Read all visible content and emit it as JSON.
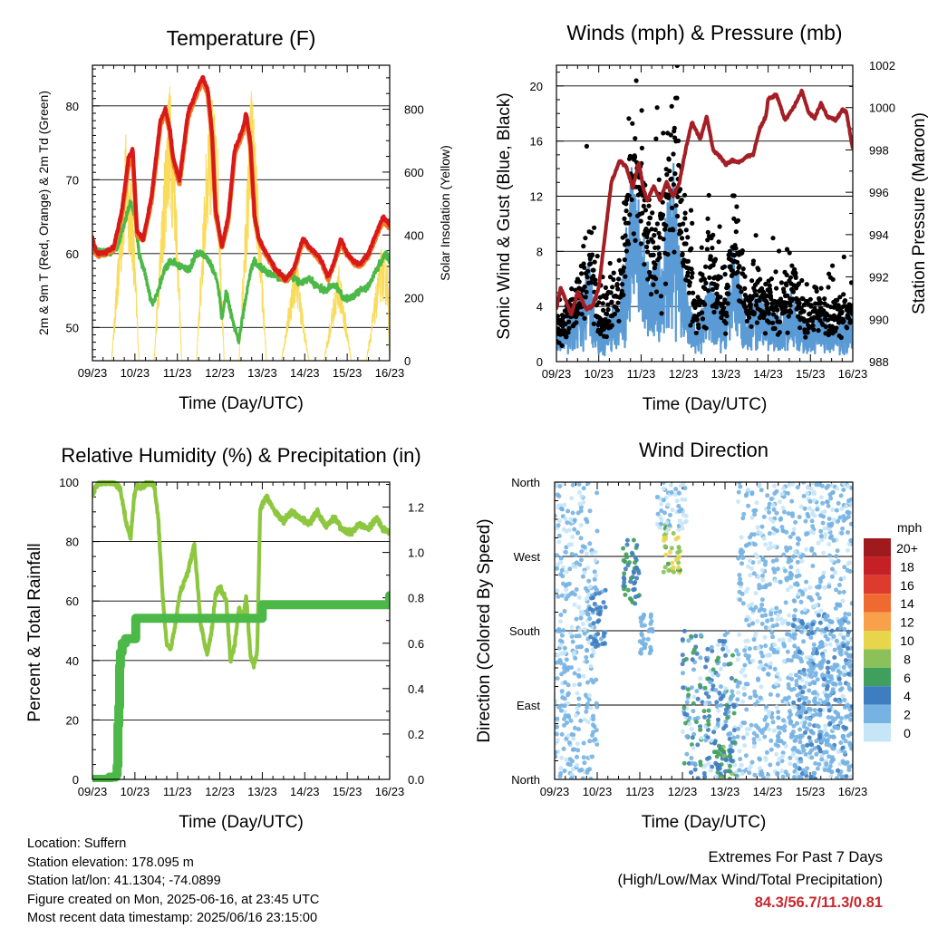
{
  "colors": {
    "red": "#d7191c",
    "orange": "#f47b20",
    "green": "#4cb848",
    "yellow": "#f9dc5c",
    "black": "#000000",
    "blue": "#5b9bd5",
    "maroon": "#a31f25",
    "rh_green": "#8dc63f",
    "precip_green": "#4cb848",
    "extreme_red": "#c9262c"
  },
  "time_ticks": [
    "09/23",
    "10/23",
    "11/23",
    "12/23",
    "13/23",
    "14/23",
    "15/23",
    "16/23"
  ],
  "chart_data": [
    {
      "id": "temperature",
      "type": "line",
      "title": "Temperature (F)",
      "xlabel": "Time (Day/UTC)",
      "ylabel": "2m & 9m T (Red, Orange) & 2m Td (Green)",
      "y2label": "Solar Insolation (Yellow)",
      "x_range": [
        0,
        7
      ],
      "ylim": [
        45.5,
        85.5
      ],
      "y_ticks": [
        "50",
        "60",
        "70",
        "80"
      ],
      "y2lim": [
        0,
        940
      ],
      "y2_ticks": [
        "0",
        "200",
        "400",
        "600",
        "800"
      ],
      "grid": true,
      "series": [
        {
          "key": "t2m",
          "color": "red",
          "x": [
            0,
            0.1,
            0.3,
            0.5,
            0.7,
            0.85,
            0.95,
            1.05,
            1.2,
            1.4,
            1.6,
            1.72,
            1.82,
            1.9,
            2.05,
            2.25,
            2.45,
            2.6,
            2.72,
            2.82,
            2.9,
            3.05,
            3.2,
            3.35,
            3.55,
            3.62,
            3.72,
            3.82,
            3.92,
            4.05,
            4.3,
            4.55,
            4.75,
            4.95,
            5.1,
            5.25,
            5.4,
            5.55,
            5.7,
            5.85,
            6.0,
            6.15,
            6.3,
            6.5,
            6.7,
            6.85,
            7.0
          ],
          "y": [
            62,
            60,
            60.2,
            60.8,
            66,
            73,
            74,
            63,
            62,
            68,
            78,
            79.5,
            77,
            73,
            70,
            79,
            82,
            84,
            82,
            76,
            66,
            61,
            65,
            74,
            77,
            79,
            75,
            65,
            62,
            60.5,
            58,
            56.5,
            58,
            62,
            61,
            60,
            59,
            56.7,
            59,
            62,
            60,
            59,
            58.5,
            60,
            63,
            65,
            64
          ]
        },
        {
          "key": "t9m",
          "color": "orange",
          "x": [
            0,
            0.1,
            0.3,
            0.5,
            0.7,
            0.85,
            0.95,
            1.05,
            1.2,
            1.4,
            1.6,
            1.72,
            1.82,
            1.9,
            2.05,
            2.25,
            2.45,
            2.6,
            2.72,
            2.82,
            2.9,
            3.05,
            3.2,
            3.35,
            3.55,
            3.62,
            3.72,
            3.82,
            3.92,
            4.05,
            4.3,
            4.55,
            4.75,
            4.95,
            5.1,
            5.25,
            5.4,
            5.55,
            5.7,
            5.85,
            6.0,
            6.15,
            6.3,
            6.5,
            6.7,
            6.85,
            7.0
          ],
          "y": [
            61.5,
            59.8,
            60,
            60.5,
            65.5,
            72,
            73,
            62.5,
            61.8,
            67.5,
            77.5,
            79,
            76.5,
            72.5,
            69.5,
            78.5,
            81.5,
            83.5,
            81.5,
            75.5,
            65.5,
            60.8,
            64.5,
            73.5,
            76.5,
            78.5,
            74.5,
            64.8,
            61.8,
            60.3,
            57.8,
            56.3,
            57.8,
            61.5,
            60.8,
            59.8,
            58.8,
            56.5,
            58.8,
            61.5,
            59.8,
            58.8,
            58.3,
            59.8,
            62.5,
            64.5,
            63.5
          ]
        },
        {
          "key": "td2m",
          "color": "green",
          "x": [
            0,
            0.2,
            0.4,
            0.6,
            0.75,
            0.9,
            1.0,
            1.1,
            1.25,
            1.4,
            1.55,
            1.7,
            1.85,
            2.0,
            2.15,
            2.3,
            2.45,
            2.6,
            2.75,
            2.9,
            3.0,
            3.05,
            3.15,
            3.25,
            3.35,
            3.45,
            3.55,
            3.7,
            3.8,
            3.95,
            4.1,
            4.3,
            4.5,
            4.7,
            4.9,
            5.1,
            5.3,
            5.5,
            5.7,
            5.9,
            6.1,
            6.3,
            6.5,
            6.7,
            6.9,
            7.0
          ],
          "y": [
            61,
            60,
            60.2,
            61,
            64,
            67,
            65,
            60,
            57,
            53,
            55,
            58,
            59,
            58.5,
            58,
            58,
            60,
            60,
            59,
            57,
            54,
            51,
            55,
            52,
            50,
            48,
            52,
            57,
            59,
            58,
            57.5,
            57,
            56.5,
            57,
            56,
            56.5,
            55.5,
            55,
            56,
            54,
            54,
            55,
            55.5,
            58,
            60,
            59
          ]
        },
        {
          "key": "solar",
          "color": "yellow",
          "axis": "y2",
          "x": [
            0,
            0.45,
            0.78,
            0.95,
            1.1,
            1.45,
            1.8,
            1.95,
            2.1,
            2.45,
            2.75,
            2.95,
            3.1,
            3.45,
            3.75,
            3.95,
            4.1,
            4.45,
            4.8,
            4.95,
            5.1,
            5.45,
            5.8,
            5.95,
            6.1,
            6.45,
            6.8,
            6.95,
            7.0
          ],
          "y": [
            0,
            0,
            700,
            500,
            0,
            0,
            880,
            650,
            0,
            0,
            850,
            700,
            0,
            0,
            880,
            400,
            0,
            0,
            350,
            150,
            0,
            0,
            300,
            150,
            0,
            0,
            350,
            300,
            0
          ]
        }
      ]
    },
    {
      "id": "winds",
      "type": "scatter",
      "title": "Winds (mph) & Pressure (mb)",
      "xlabel": "Time (Day/UTC)",
      "ylabel": "Sonic Wind & Gust (Blue, Black)",
      "y2label": "Station Pressure (Maroon)",
      "x_range": [
        0,
        7
      ],
      "ylim": [
        0,
        21.5
      ],
      "y_ticks": [
        "0",
        "4",
        "8",
        "12",
        "16",
        "20"
      ],
      "y2lim": [
        988,
        1002
      ],
      "y2_ticks": [
        "988",
        "990",
        "992",
        "994",
        "996",
        "998",
        "1000",
        "1002"
      ],
      "grid": true,
      "wind_envelope": {
        "x": [
          0,
          0.3,
          0.55,
          0.75,
          1.0,
          1.2,
          1.5,
          1.8,
          2.0,
          2.2,
          2.5,
          2.75,
          3.0,
          3.3,
          3.6,
          3.8,
          4.0,
          4.2,
          4.5,
          4.7,
          5.0,
          5.3,
          5.6,
          5.9,
          6.2,
          6.5,
          6.8,
          7.0
        ],
        "sustained": [
          1.5,
          2,
          3,
          5,
          1.5,
          2,
          3,
          9,
          6,
          4,
          5,
          9,
          4,
          1.5,
          4,
          3,
          2.5,
          5,
          2,
          3,
          2.5,
          2,
          3,
          1.5,
          2.5,
          1.5,
          2,
          2
        ],
        "gust": [
          2.5,
          3.5,
          4.5,
          8,
          3,
          3.5,
          5,
          14,
          12,
          8,
          9,
          15,
          9,
          3,
          7,
          5,
          4,
          9,
          4,
          5,
          4,
          4,
          5,
          3,
          4,
          3,
          4,
          3
        ]
      },
      "series": [
        {
          "key": "pressure",
          "name": "Station Pressure",
          "color": "maroon",
          "axis": "y2",
          "x": [
            0,
            0.1,
            0.2,
            0.35,
            0.5,
            0.7,
            0.85,
            1.0,
            1.15,
            1.3,
            1.5,
            1.65,
            1.8,
            1.95,
            2.05,
            2.15,
            2.3,
            2.45,
            2.6,
            2.75,
            2.9,
            3.05,
            3.2,
            3.4,
            3.55,
            3.7,
            3.9,
            4.0,
            4.15,
            4.3,
            4.5,
            4.65,
            4.8,
            4.95,
            5.0,
            5.2,
            5.4,
            5.6,
            5.8,
            5.95,
            6.1,
            6.25,
            6.4,
            6.6,
            6.75,
            6.85,
            7.0
          ],
          "y": [
            990.5,
            991.5,
            991,
            990.2,
            991.3,
            990.5,
            990.6,
            991.5,
            994,
            996.5,
            997.5,
            997.2,
            996.2,
            997.4,
            996.2,
            995.6,
            996.3,
            995.6,
            996.5,
            995.8,
            996.4,
            998,
            999.3,
            998.5,
            999.6,
            998,
            997.6,
            997.3,
            997.5,
            997.4,
            997.7,
            997.8,
            999,
            999.6,
            1000.4,
            1000.6,
            999.4,
            1000,
            1000.8,
            999.8,
            999.5,
            1000.2,
            999.6,
            999.4,
            999.9,
            999.8,
            998
          ]
        }
      ]
    },
    {
      "id": "humidity",
      "type": "line",
      "title": "Relative Humidity (%) & Precipitation (in)",
      "xlabel": "Time (Day/UTC)",
      "ylabel": "Percent & Total Rainfall",
      "x_range": [
        0,
        7
      ],
      "ylim": [
        0,
        100
      ],
      "y_ticks": [
        "0",
        "20",
        "40",
        "60",
        "80",
        "100"
      ],
      "y2lim": [
        0,
        1.31
      ],
      "y2_ticks": [
        "0.0",
        "0.2",
        "0.4",
        "0.6",
        "0.8",
        "1.0",
        "1.2"
      ],
      "grid": true,
      "series": [
        {
          "key": "rh",
          "color": "rh_green",
          "x": [
            0,
            0.08,
            0.2,
            0.45,
            0.65,
            0.8,
            0.9,
            0.98,
            1.05,
            1.15,
            1.3,
            1.45,
            1.55,
            1.65,
            1.75,
            1.85,
            1.95,
            2.05,
            2.25,
            2.4,
            2.55,
            2.7,
            2.8,
            2.9,
            3.0,
            3.15,
            3.25,
            3.35,
            3.45,
            3.55,
            3.62,
            3.72,
            3.8,
            3.88,
            3.95,
            4.1,
            4.3,
            4.5,
            4.7,
            4.9,
            5.1,
            5.3,
            5.5,
            5.7,
            5.9,
            6.1,
            6.3,
            6.5,
            6.7,
            6.85,
            7.0
          ],
          "y": [
            95,
            99,
            100,
            100,
            98,
            86,
            81,
            95,
            99,
            98,
            100,
            99,
            88,
            62,
            45,
            44,
            52,
            62,
            70,
            79,
            52,
            42,
            49,
            62,
            65,
            60,
            40,
            45,
            58,
            54,
            62,
            42,
            38,
            43,
            91,
            95,
            90,
            87,
            90,
            88,
            86,
            90,
            85,
            88,
            84,
            83,
            86,
            84,
            88,
            84,
            83
          ]
        },
        {
          "key": "precip",
          "color": "precip_green",
          "axis": "y2",
          "step": true,
          "x": [
            0,
            0.4,
            0.55,
            0.58,
            0.6,
            0.62,
            0.64,
            0.66,
            0.7,
            0.78,
            0.9,
            1.0,
            1.02,
            3.95,
            4.0,
            7.0
          ],
          "y": [
            0,
            0.01,
            0.02,
            0.06,
            0.24,
            0.32,
            0.5,
            0.56,
            0.6,
            0.62,
            0.62,
            0.62,
            0.71,
            0.71,
            0.77,
            0.81
          ]
        }
      ]
    },
    {
      "id": "direction",
      "type": "scatter",
      "title": "Wind Direction",
      "xlabel": "Time (Day/UTC)",
      "ylabel": "Direction (Colored By Speed)",
      "x_range": [
        0,
        7
      ],
      "ylim": [
        0,
        360
      ],
      "y_ticks": [
        "North",
        "East",
        "South",
        "West",
        "North"
      ],
      "grid": true,
      "clusters": [
        {
          "x": [
            0,
            1.0
          ],
          "y": [
            0,
            360
          ],
          "spd": [
            0,
            3
          ]
        },
        {
          "x": [
            0.8,
            1.2
          ],
          "y": [
            160,
            230
          ],
          "spd": [
            2,
            5
          ]
        },
        {
          "x": [
            1.6,
            2.0
          ],
          "y": [
            210,
            290
          ],
          "spd": [
            3,
            7
          ]
        },
        {
          "x": [
            2.0,
            2.3
          ],
          "y": [
            150,
            200
          ],
          "spd": [
            1,
            3
          ]
        },
        {
          "x": [
            2.55,
            2.95
          ],
          "y": [
            250,
            310
          ],
          "spd": [
            6,
            11
          ]
        },
        {
          "x": [
            2.4,
            3.1
          ],
          "y": [
            300,
            360
          ],
          "spd": [
            0,
            2
          ]
        },
        {
          "x": [
            3.0,
            4.3
          ],
          "y": [
            0,
            180
          ],
          "spd": [
            0,
            6
          ]
        },
        {
          "x": [
            3.8,
            4.2
          ],
          "y": [
            0,
            40
          ],
          "spd": [
            3,
            8
          ]
        },
        {
          "x": [
            4.3,
            7.0
          ],
          "y": [
            0,
            360
          ],
          "spd": [
            0,
            3
          ]
        },
        {
          "x": [
            5.6,
            7.0
          ],
          "y": [
            0,
            200
          ],
          "spd": [
            1,
            4
          ]
        }
      ]
    }
  ],
  "legend": {
    "unit": "mph",
    "labels": [
      "20+",
      "18",
      "16",
      "14",
      "12",
      "10",
      "8",
      "6",
      "4",
      "2",
      "0"
    ],
    "colors": [
      "#9e1a1d",
      "#c62027",
      "#dd3b2e",
      "#ef6a30",
      "#f8a04a",
      "#e7d64b",
      "#8cc159",
      "#3f9f5c",
      "#3e7dbf",
      "#76b3e2",
      "#c6e6f7"
    ]
  },
  "station": {
    "location": "Location: Suffern",
    "elevation": "Station elevation: 178.095 m",
    "latlon": "Station lat/lon: 41.1304; -74.0899",
    "created": "Figure created on Mon, 2025-06-16, at 23:45 UTC",
    "recent": "Most recent data timestamp: 2025/06/16 23:15:00"
  },
  "extremes": {
    "line1": "Extremes For Past 7 Days",
    "line2": "(High/Low/Max Wind/Total Precipitation)",
    "values": "84.3/56.7/11.3/0.81"
  }
}
